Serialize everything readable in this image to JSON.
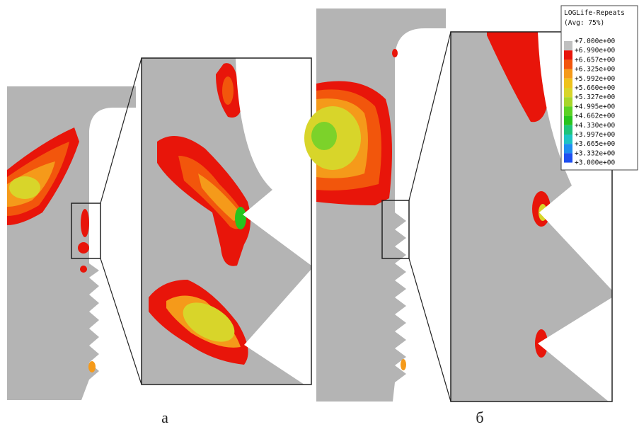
{
  "legend": {
    "title": "LOGLife-Repeats",
    "subtitle": "(Avg: 75%)",
    "levels": [
      "+7.000e+00",
      "+6.990e+00",
      "+6.657e+00",
      "+6.325e+00",
      "+5.992e+00",
      "+5.660e+00",
      "+5.327e+00",
      "+4.995e+00",
      "+4.662e+00",
      "+4.330e+00",
      "+3.997e+00",
      "+3.665e+00",
      "+3.332e+00",
      "+3.000e+00"
    ]
  },
  "panels": [
    {
      "label": "а"
    },
    {
      "label": "б"
    }
  ]
}
